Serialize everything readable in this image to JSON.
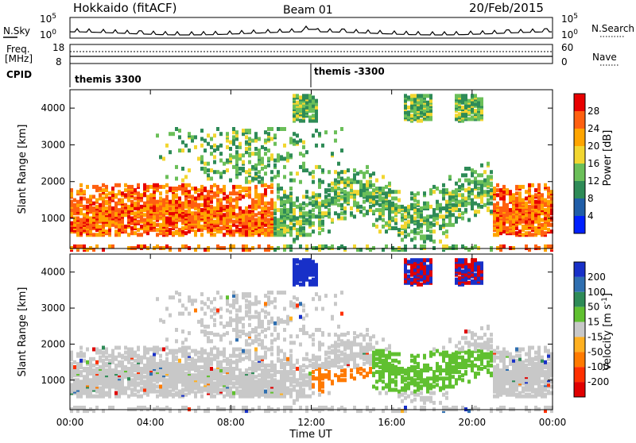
{
  "header": {
    "title_left": "Hokkaido (fitACF)",
    "title_center": "Beam 01",
    "title_right": "20/Feb/2015"
  },
  "noise_panel": {
    "label_left": "N.Sky",
    "label_right": "N.Search",
    "tick_top_left": "10^5",
    "tick_bottom_left": "10^0",
    "tick_top_right": "10^5",
    "tick_bottom_right": "10^0"
  },
  "freq_panel": {
    "label_left_line1": "Freq.",
    "label_left_line2": "[MHz]",
    "label_right": "Nave",
    "tick_left_top": "18",
    "tick_left_bottom": "8",
    "tick_right_top": "60",
    "tick_right_bottom": "0"
  },
  "cpid_panel": {
    "label": "CPID",
    "entries": [
      "themis 3300",
      "themis -3300"
    ]
  },
  "colors": {
    "power_scale": [
      "#0020ff",
      "#205ea8",
      "#2e8b57",
      "#6bbf59",
      "#f2d630",
      "#ffa500",
      "#ff6010",
      "#e80000"
    ],
    "velocity_scale": [
      "#1830c8",
      "#2f6fb0",
      "#2e8b57",
      "#60c030",
      "#c8c8c8",
      "#ffb020",
      "#ff7a00",
      "#ff3000",
      "#e00000"
    ],
    "ground_scatter": "#c8c8c8"
  },
  "chart_data": [
    {
      "type": "heatmap",
      "panel": "power",
      "ylabel": "Slant Range [km]",
      "xlabel": "Time UT",
      "x_ticks": [
        "00:00",
        "04:00",
        "08:00",
        "12:00",
        "16:00",
        "20:00",
        "00:00"
      ],
      "y_ticks": [
        "1000",
        "2000",
        "3000",
        "4000"
      ],
      "x_range_hours": [
        0,
        24
      ],
      "y_range_km": [
        180,
        4500
      ],
      "colorbar_label": "Power [dB]",
      "colorbar_ticks": [
        "4",
        "8",
        "12",
        "16",
        "20",
        "24",
        "28"
      ],
      "colorbar_range_db": [
        0,
        32
      ]
    },
    {
      "type": "heatmap",
      "panel": "velocity",
      "ylabel": "Slant Range [km]",
      "xlabel": "Time UT",
      "x_ticks": [
        "00:00",
        "04:00",
        "08:00",
        "12:00",
        "16:00",
        "20:00",
        "00:00"
      ],
      "y_ticks": [
        "1000",
        "2000",
        "3000",
        "4000"
      ],
      "x_range_hours": [
        0,
        24
      ],
      "y_range_km": [
        180,
        4500
      ],
      "colorbar_label": "Velocity [m s-1]",
      "colorbar_ticks": [
        "200",
        "100",
        "50",
        "15",
        "-15",
        "-50",
        "-100",
        "-200"
      ],
      "colorbar_range_ms": [
        -250,
        250
      ]
    }
  ]
}
